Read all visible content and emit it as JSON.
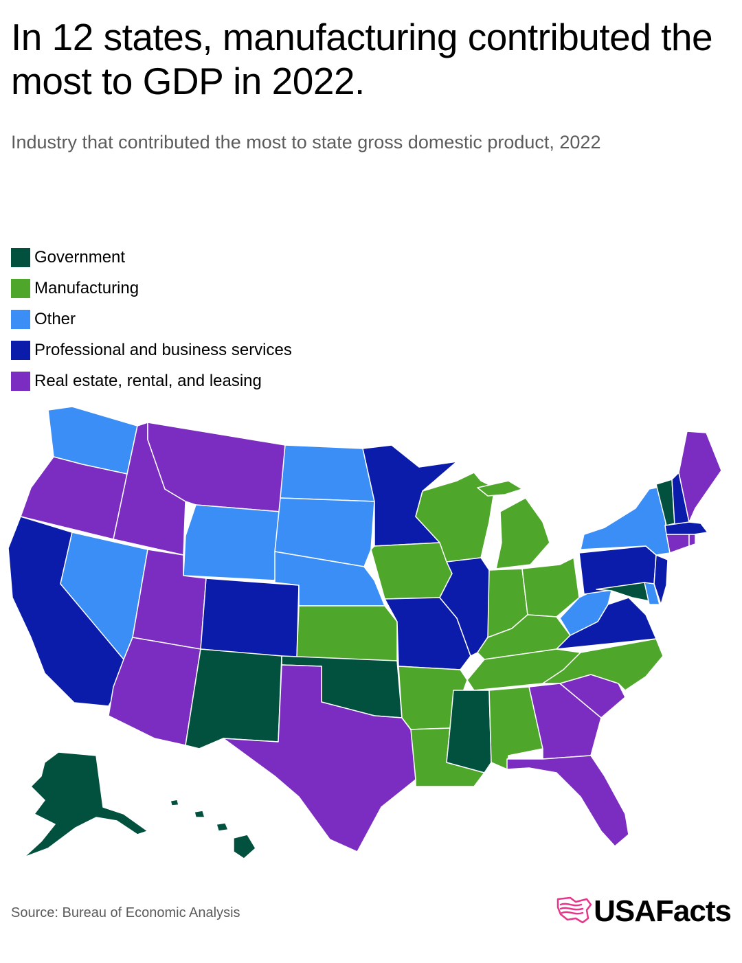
{
  "title": "In 12 states, manufacturing contributed the most to GDP in 2022.",
  "subtitle": "Industry that contributed the most to state gross domestic product, 2022",
  "legend": [
    {
      "label": "Government",
      "color": "#02513f"
    },
    {
      "label": "Manufacturing",
      "color": "#4ea72a"
    },
    {
      "label": "Other",
      "color": "#3b8ef5"
    },
    {
      "label": "Professional and business services",
      "color": "#0b1cab"
    },
    {
      "label": "Real estate, rental, and leasing",
      "color": "#7b2dc1"
    }
  ],
  "categories": {
    "gov": "Government",
    "mfg": "Manufacturing",
    "oth": "Other",
    "pro": "Professional and business services",
    "re": "Real estate, rental, and leasing"
  },
  "states": {
    "WA": "oth",
    "OR": "re",
    "CA": "pro",
    "NV": "oth",
    "ID": "re",
    "MT": "re",
    "WY": "oth",
    "UT": "re",
    "AZ": "re",
    "CO": "pro",
    "NM": "gov",
    "ND": "oth",
    "SD": "oth",
    "NE": "oth",
    "KS": "mfg",
    "OK": "gov",
    "TX": "re",
    "MN": "pro",
    "IA": "mfg",
    "MO": "pro",
    "AR": "mfg",
    "LA": "mfg",
    "WI": "mfg",
    "IL": "pro",
    "MI": "mfg",
    "IN": "mfg",
    "OH": "mfg",
    "KY": "mfg",
    "TN": "mfg",
    "MS": "gov",
    "AL": "mfg",
    "GA": "re",
    "FL": "re",
    "SC": "re",
    "NC": "mfg",
    "VA": "pro",
    "WV": "oth",
    "PA": "pro",
    "NY": "oth",
    "VT": "gov",
    "NH": "pro",
    "ME": "re",
    "MA": "pro",
    "RI": "re",
    "CT": "re",
    "NJ": "pro",
    "DE": "oth",
    "MD": "gov",
    "AK": "gov",
    "HI": "gov"
  },
  "source": "Source: Bureau of Economic Analysis",
  "brand": "USAFacts",
  "brand_icon": "usa-flag-map-icon",
  "brand_color": "#e8358a"
}
